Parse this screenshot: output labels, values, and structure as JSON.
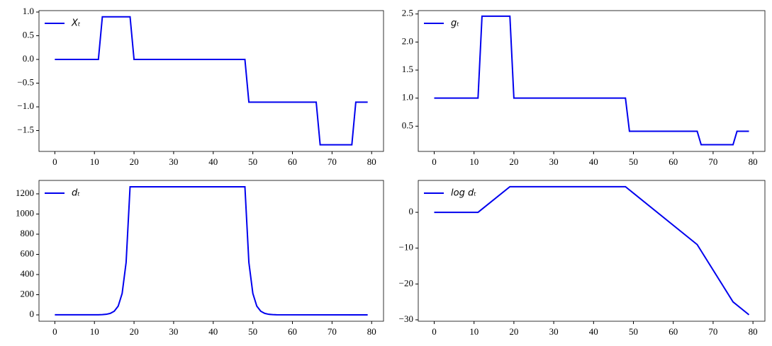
{
  "chart_data": [
    {
      "type": "line",
      "legend": "upper left",
      "x": [
        0,
        11,
        12,
        19,
        20,
        48,
        49,
        66,
        67,
        75,
        76,
        79
      ],
      "series": [
        {
          "name": "Xₜ",
          "color": "#0000ee",
          "values": [
            0,
            0,
            0.9,
            0.9,
            0,
            0,
            -0.9,
            -0.9,
            -1.8,
            -1.8,
            -0.9,
            -0.9
          ]
        }
      ],
      "xlim": [
        -4,
        83
      ],
      "ylim": [
        -1.94,
        1.03
      ],
      "xticks": [
        0,
        10,
        20,
        30,
        40,
        50,
        60,
        70,
        80
      ],
      "yticks": [
        {
          "value": -1.5,
          "label": "−1.5"
        },
        {
          "value": -1,
          "label": "−1.0"
        },
        {
          "value": -0.5,
          "label": "−0.5"
        },
        {
          "value": 0,
          "label": "0.0"
        },
        0.5,
        {
          "value": 1,
          "label": "1.0"
        }
      ]
    },
    {
      "type": "line",
      "legend": "upper left",
      "x": [
        0,
        11,
        12,
        19,
        20,
        48,
        49,
        66,
        67,
        75,
        76,
        79
      ],
      "series": [
        {
          "name": "gₜ",
          "color": "#0000ee",
          "values": [
            1,
            1,
            2.46,
            2.46,
            1,
            1,
            0.41,
            0.41,
            0.17,
            0.17,
            0.41,
            0.41
          ]
        }
      ],
      "xlim": [
        -4,
        83
      ],
      "ylim": [
        0.05,
        2.56
      ],
      "xticks": [
        0,
        10,
        20,
        30,
        40,
        50,
        60,
        70,
        80
      ],
      "yticks": [
        0.5,
        {
          "value": 1,
          "label": "1.0"
        },
        1.5,
        {
          "value": 2,
          "label": "2.0"
        },
        2.5
      ]
    },
    {
      "type": "line",
      "legend": "upper left",
      "x": [
        0,
        11,
        12,
        13,
        14,
        15,
        16,
        17,
        18,
        19,
        48,
        49,
        50,
        51,
        52,
        53,
        54,
        55,
        56,
        79
      ],
      "series": [
        {
          "name": "dₜ",
          "color": "#0000ee",
          "values": [
            1,
            1,
            2.4,
            6,
            15,
            36,
            87,
            213,
            520,
            1270,
            1270,
            520,
            213,
            87,
            36,
            15,
            6,
            2.4,
            1,
            0
          ]
        }
      ],
      "xlim": [
        -4,
        83
      ],
      "ylim": [
        -63,
        1333
      ],
      "xticks": [
        0,
        10,
        20,
        30,
        40,
        50,
        60,
        70,
        80
      ],
      "yticks": [
        0,
        200,
        400,
        600,
        800,
        1000,
        1200
      ]
    },
    {
      "type": "line",
      "legend": "upper left",
      "x": [
        0,
        11,
        19,
        48,
        66,
        75,
        79
      ],
      "series": [
        {
          "name": "log dₜ",
          "color": "#0000ee",
          "values": [
            0,
            0,
            7.15,
            7.15,
            -9,
            -25,
            -28.6
          ]
        }
      ],
      "xlim": [
        -4,
        83
      ],
      "ylim": [
        -30.4,
        8.9
      ],
      "xticks": [
        0,
        10,
        20,
        30,
        40,
        50,
        60,
        70,
        80
      ],
      "yticks": [
        {
          "value": -30,
          "label": "−30"
        },
        {
          "value": -20,
          "label": "−20"
        },
        {
          "value": -10,
          "label": "−10"
        },
        0
      ]
    }
  ]
}
